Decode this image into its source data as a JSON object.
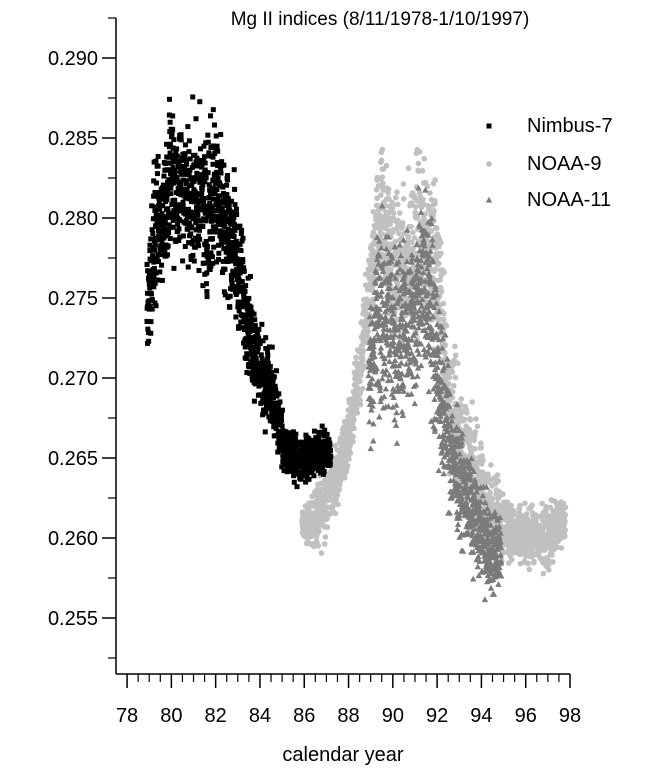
{
  "chart_data": {
    "type": "scatter",
    "title": "Mg II indices (8/11/1978-1/10/1997)",
    "xlabel": "calendar year",
    "ylabel": "",
    "xlim": [
      77.5,
      98.0
    ],
    "ylim": [
      0.2515,
      0.2925
    ],
    "x_ticks": [
      78,
      80,
      82,
      84,
      86,
      88,
      90,
      92,
      94,
      96,
      98
    ],
    "x_tick_labels": [
      "78",
      "80",
      "82",
      "84",
      "86",
      "88",
      "90",
      "92",
      "94",
      "96",
      "98"
    ],
    "y_ticks": [
      0.255,
      0.26,
      0.265,
      0.27,
      0.275,
      0.28,
      0.285,
      0.29
    ],
    "y_tick_labels": [
      "0.255",
      "0.260",
      "0.265",
      "0.270",
      "0.275",
      "0.280",
      "0.285",
      "0.290"
    ],
    "grid": false,
    "legend_position": "top-right",
    "series": [
      {
        "name": "Nimbus-7",
        "marker": "square",
        "color": "#000000",
        "envelope": {
          "x": [
            78.9,
            79.2,
            79.6,
            80.0,
            80.4,
            80.8,
            81.2,
            81.6,
            82.0,
            82.4,
            82.8,
            83.2,
            83.6,
            84.0,
            84.4,
            84.8,
            85.2,
            85.6,
            86.0,
            86.4,
            86.8,
            87.2
          ],
          "upper": [
            0.2785,
            0.2845,
            0.2855,
            0.2905,
            0.2875,
            0.288,
            0.2875,
            0.2875,
            0.2895,
            0.2855,
            0.2845,
            0.2805,
            0.2765,
            0.2745,
            0.2735,
            0.2705,
            0.267,
            0.267,
            0.267,
            0.267,
            0.2675,
            0.2665
          ],
          "lower": [
            0.2695,
            0.272,
            0.2745,
            0.2755,
            0.276,
            0.2745,
            0.275,
            0.273,
            0.275,
            0.274,
            0.272,
            0.2705,
            0.2685,
            0.2665,
            0.2655,
            0.264,
            0.2635,
            0.263,
            0.263,
            0.263,
            0.2635,
            0.264
          ]
        }
      },
      {
        "name": "NOAA-9",
        "marker": "circle",
        "color": "#c0c0c0",
        "envelope": {
          "x": [
            85.9,
            86.3,
            86.7,
            87.1,
            87.5,
            88.0,
            88.5,
            89.0,
            89.5,
            90.0,
            90.5,
            91.0,
            91.5,
            92.0,
            92.5,
            93.0,
            93.5,
            94.0,
            94.5,
            95.0,
            95.4,
            96.0,
            96.5,
            97.0,
            97.5,
            97.8
          ],
          "upper": [
            0.262,
            0.263,
            0.265,
            0.266,
            0.2665,
            0.269,
            0.2735,
            0.28,
            0.2865,
            0.284,
            0.283,
            0.286,
            0.287,
            0.284,
            0.275,
            0.272,
            0.27,
            0.267,
            0.2655,
            0.2645,
            0.2625,
            0.2625,
            0.2625,
            0.263,
            0.2635,
            0.263
          ],
          "lower": [
            0.2595,
            0.259,
            0.258,
            0.26,
            0.2615,
            0.264,
            0.267,
            0.272,
            0.274,
            0.27,
            0.269,
            0.27,
            0.271,
            0.269,
            0.263,
            0.26,
            0.259,
            0.2575,
            0.257,
            0.2575,
            0.258,
            0.2575,
            0.2575,
            0.257,
            0.2585,
            0.259
          ]
        }
      },
      {
        "name": "NOAA-11",
        "marker": "triangle",
        "color": "#7a7a7a",
        "envelope": {
          "x": [
            88.9,
            89.3,
            89.7,
            90.1,
            90.5,
            90.9,
            91.3,
            91.7,
            92.1,
            92.5,
            92.9,
            93.3,
            93.7,
            94.1,
            94.5,
            94.9
          ],
          "upper": [
            0.2745,
            0.283,
            0.282,
            0.2815,
            0.28,
            0.281,
            0.284,
            0.2835,
            0.277,
            0.272,
            0.269,
            0.267,
            0.2655,
            0.264,
            0.263,
            0.262
          ],
          "lower": [
            0.265,
            0.264,
            0.265,
            0.264,
            0.2655,
            0.266,
            0.267,
            0.2665,
            0.262,
            0.2605,
            0.259,
            0.258,
            0.257,
            0.256,
            0.255,
            0.2565
          ]
        }
      }
    ]
  }
}
